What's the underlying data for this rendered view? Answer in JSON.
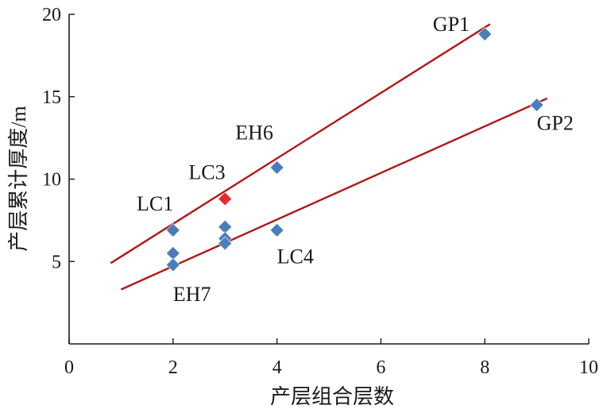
{
  "chart_data": {
    "type": "scatter",
    "title": "",
    "xlabel": "产层组合层数",
    "ylabel": "产层累计厚度/m",
    "xlim": [
      0,
      10
    ],
    "ylim": [
      0,
      20
    ],
    "xticks": [
      "0",
      "2",
      "4",
      "6",
      "8",
      "10"
    ],
    "yticks": [
      "5",
      "10",
      "15",
      "20"
    ],
    "grid": false,
    "legend": "none",
    "points": [
      {
        "x": 2,
        "y": 6.9,
        "color": "#4a7ebb"
      },
      {
        "x": 2,
        "y": 5.5,
        "color": "#4a7ebb"
      },
      {
        "x": 2,
        "y": 4.8,
        "color": "#4a7ebb"
      },
      {
        "x": 3,
        "y": 8.8,
        "color": "#e32b2b"
      },
      {
        "x": 3,
        "y": 7.1,
        "color": "#4a7ebb"
      },
      {
        "x": 3,
        "y": 6.4,
        "color": "#4a7ebb"
      },
      {
        "x": 3,
        "y": 6.1,
        "color": "#4a7ebb"
      },
      {
        "x": 4,
        "y": 10.7,
        "color": "#4a7ebb"
      },
      {
        "x": 4,
        "y": 6.9,
        "color": "#4a7ebb"
      },
      {
        "x": 8,
        "y": 18.8,
        "color": "#4a7ebb"
      },
      {
        "x": 9,
        "y": 14.5,
        "color": "#4a7ebb"
      }
    ],
    "point_labels": [
      {
        "text": "GP1",
        "x": 7.0,
        "y": 19.0
      },
      {
        "text": "GP2",
        "x": 9.0,
        "y": 13.0
      },
      {
        "text": "EH6",
        "x": 3.2,
        "y": 12.4
      },
      {
        "text": "LC3",
        "x": 2.3,
        "y": 10.0
      },
      {
        "text": "LC1",
        "x": 1.3,
        "y": 8.1
      },
      {
        "text": "LC4",
        "x": 4.0,
        "y": 4.9
      },
      {
        "text": "EH7",
        "x": 2.0,
        "y": 2.6
      }
    ],
    "trendlines": [
      {
        "x": [
          0.8,
          8.1
        ],
        "y": [
          4.9,
          19.4
        ],
        "color": "#b01818"
      },
      {
        "x": [
          1.0,
          9.2
        ],
        "y": [
          3.3,
          14.9
        ],
        "color": "#b01818"
      }
    ]
  }
}
